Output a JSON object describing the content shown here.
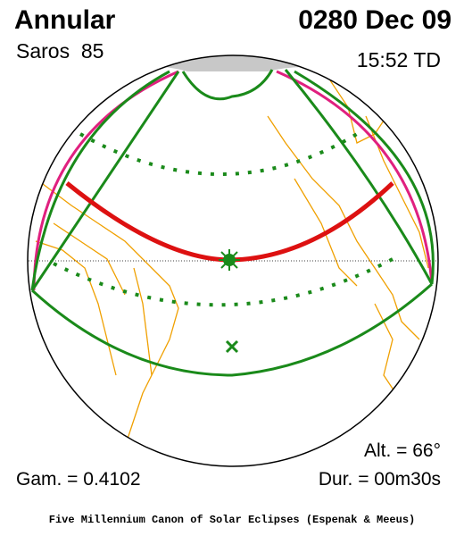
{
  "header": {
    "type": "Annular",
    "date": "0280 Dec 09",
    "saros": "Saros  85",
    "time": "15:52 TD"
  },
  "info": {
    "altitude": "Alt. = 66°",
    "gamma": "Gam. = 0.4102",
    "duration": "Dur. = 00m30s"
  },
  "footer": {
    "credit": "Five Millennium Canon of Solar Eclipses (Espenak & Meeus)"
  }
}
